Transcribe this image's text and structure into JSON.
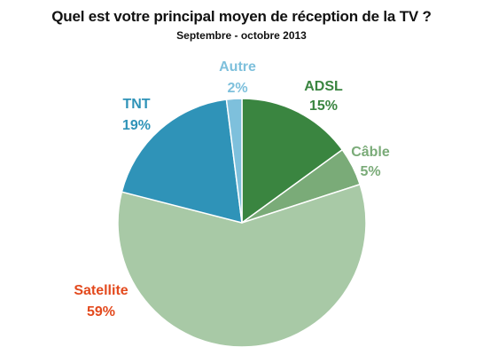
{
  "chart_data": {
    "type": "pie",
    "title": "Quel est votre principal moyen de réception de la TV ?",
    "subtitle": "Septembre - octobre 2013",
    "start": "12 o'clock, clockwise",
    "slices": [
      {
        "name": "ADSL",
        "value": 15,
        "label": "15%",
        "color": "#3a8540",
        "label_color": "#3a8540"
      },
      {
        "name": "Câble",
        "value": 5,
        "label": "5%",
        "color": "#7aab78",
        "label_color": "#7aab78"
      },
      {
        "name": "Satellite",
        "value": 59,
        "label": "59%",
        "color": "#a8c9a6",
        "label_color": "#e34a1e"
      },
      {
        "name": "TNT",
        "value": 19,
        "label": "19%",
        "color": "#2f93b8",
        "label_color": "#2f93b8"
      },
      {
        "name": "Autre",
        "value": 2,
        "label": "2%",
        "color": "#7ec0dc",
        "label_color": "#7ec0dc"
      }
    ]
  }
}
